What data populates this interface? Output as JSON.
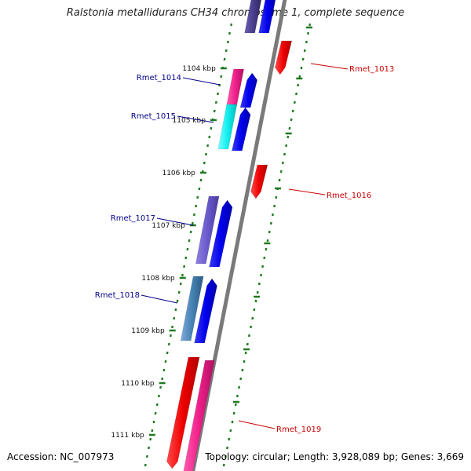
{
  "title": "Ralstonia metallidurans CH34 chromosome 1, complete sequence",
  "accession": "Accession: NC_007973",
  "summary": "Topology: circular; Length: 3,928,089 bp; Genes: 3,669",
  "colors": {
    "backbone": "#7a7a7a",
    "tick": "#1f7a1f",
    "label_forward": "#00008b",
    "label_reverse": "#cc0000"
  },
  "ticks": [
    {
      "label": "1104 kbp"
    },
    {
      "label": "1105 kbp"
    },
    {
      "label": "1106 kbp"
    },
    {
      "label": "1107 kbp"
    },
    {
      "label": "1108 kbp"
    },
    {
      "label": "1109 kbp"
    },
    {
      "label": "1110 kbp"
    },
    {
      "label": "1111 kbp"
    }
  ],
  "genes": [
    {
      "name": "Rmet_1013",
      "strand": "reverse"
    },
    {
      "name": "Rmet_1014",
      "strand": "forward"
    },
    {
      "name": "Rmet_1015",
      "strand": "forward"
    },
    {
      "name": "Rmet_1016",
      "strand": "reverse"
    },
    {
      "name": "Rmet_1017",
      "strand": "forward"
    },
    {
      "name": "Rmet_1018",
      "strand": "forward"
    },
    {
      "name": "Rmet_1019",
      "strand": "reverse"
    }
  ]
}
